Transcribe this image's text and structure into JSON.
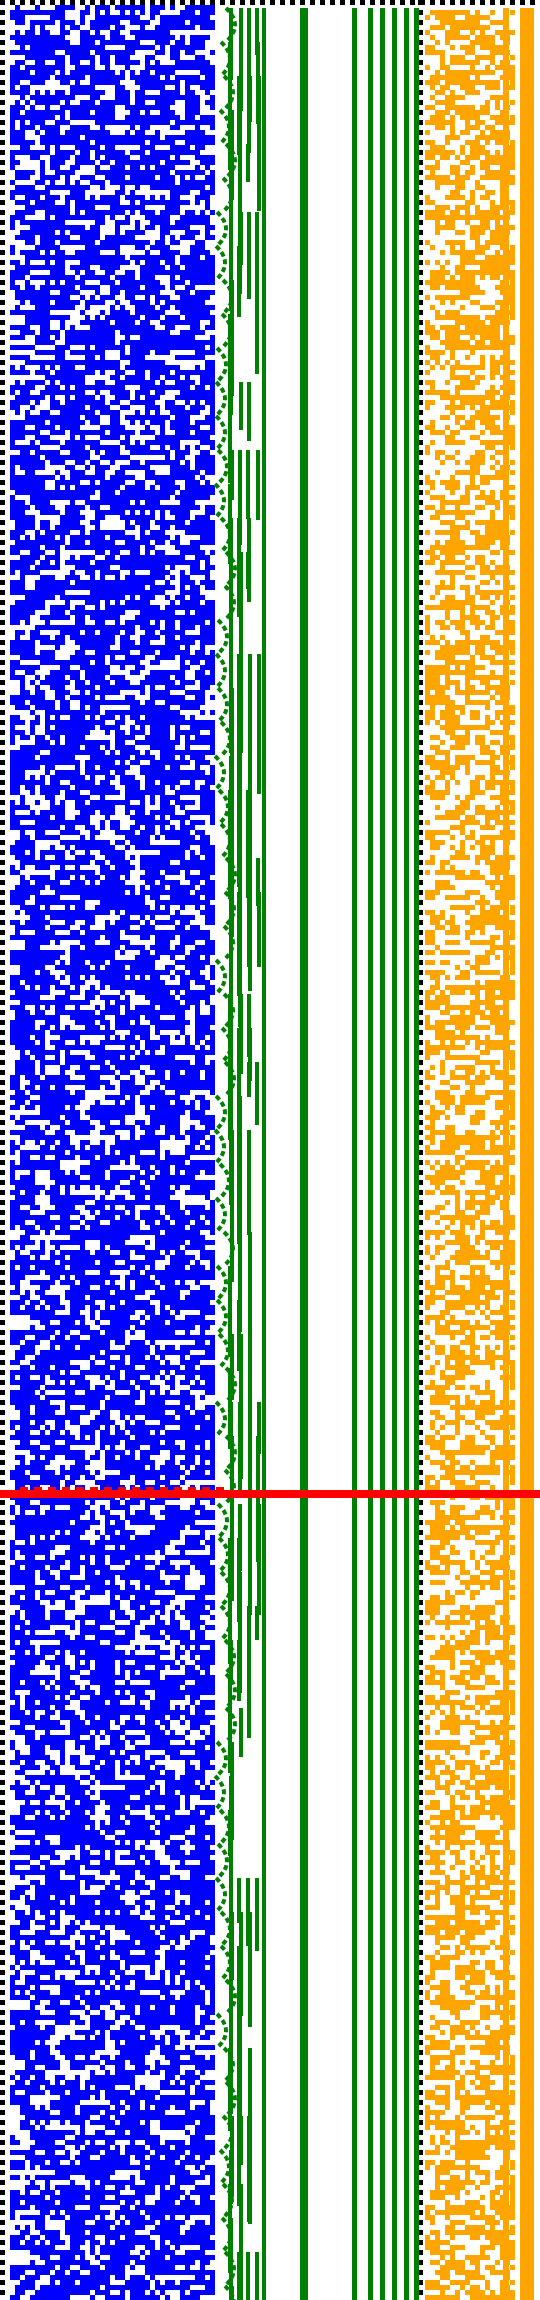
{
  "figure": {
    "colors": {
      "background": "#ffffff",
      "dots": "#000000",
      "blue_region": "#0000ff",
      "green_region": "#008000",
      "orange_region": "#ffa500",
      "marker_line": "#ff0000"
    },
    "marker_row_fraction": 0.648,
    "blue_fill_density": 0.55,
    "orange_fill_density": 0.42,
    "green_vertical_bars": 8
  }
}
